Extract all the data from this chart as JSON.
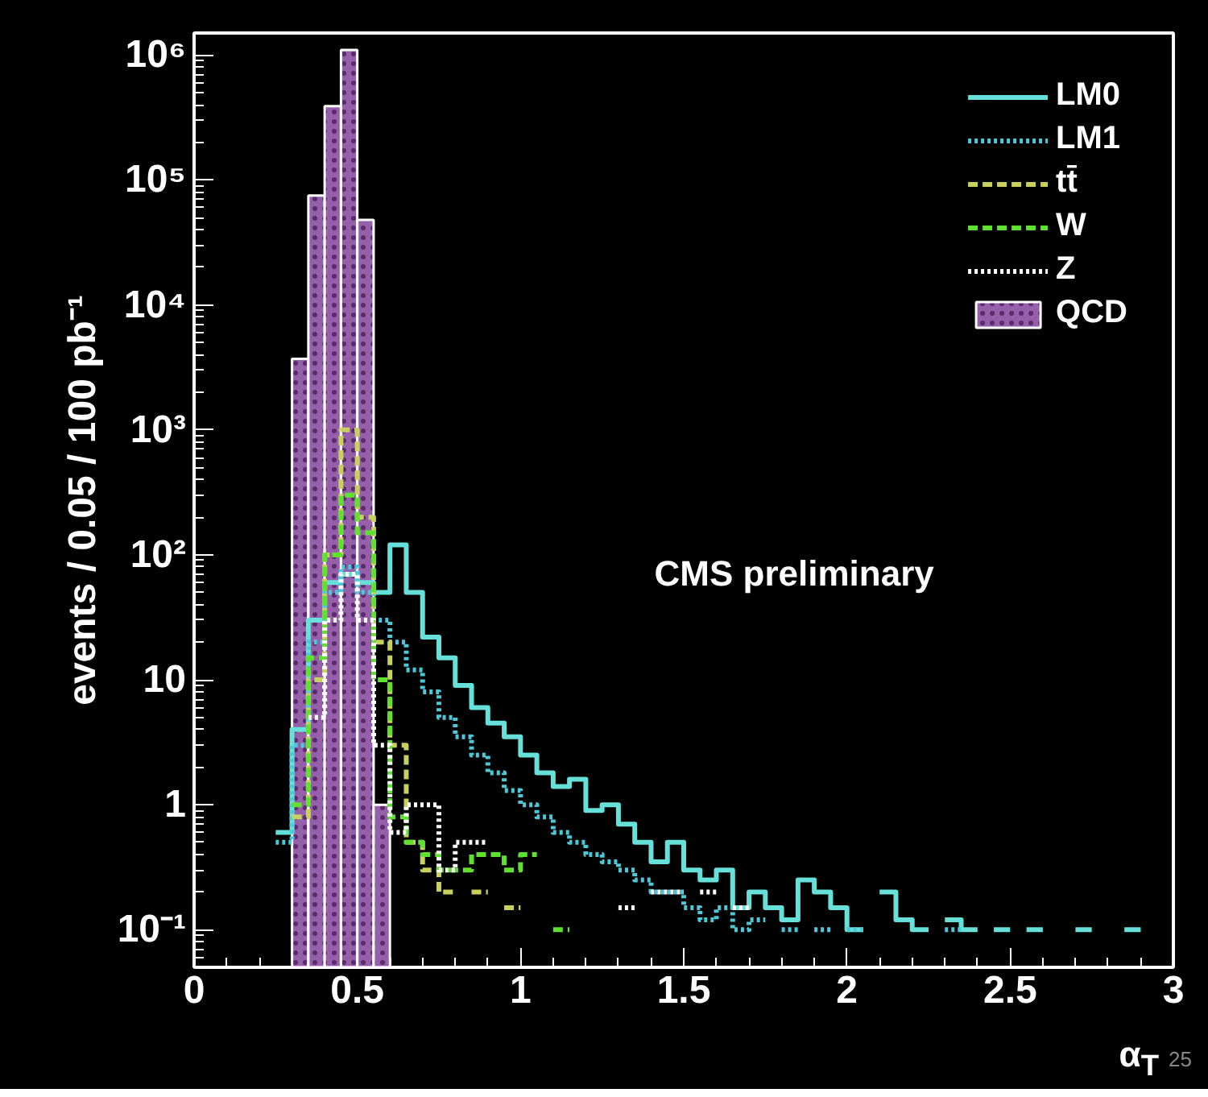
{
  "chart_data": {
    "type": "histogram",
    "xlabel": "α$_{T}$",
    "ylabel": "events / 0.05 / 100 pb⁻¹",
    "annotations": [
      "CMS preliminary",
      "25"
    ],
    "log": "y",
    "legend": "top right",
    "grid": false,
    "xlim": [
      0,
      3
    ],
    "ylim": [
      0.05,
      1500000
    ],
    "xticks": [
      0,
      0.5,
      1,
      1.5,
      2,
      2.5,
      3
    ],
    "yticks": [
      {
        "value": 0.1,
        "label": "10⁻¹"
      },
      1,
      10,
      {
        "value": 100,
        "label": "10²"
      },
      {
        "value": 1000,
        "label": "10³"
      },
      {
        "value": 10000,
        "label": "10⁴"
      },
      {
        "value": 100000,
        "label": "10⁵"
      },
      {
        "value": 1000000,
        "label": "10⁶"
      }
    ],
    "bins": [
      0,
      0.05,
      0.1,
      0.15,
      0.2,
      0.25,
      0.3,
      0.35,
      0.4,
      0.45,
      0.5,
      0.55,
      0.6,
      0.65,
      0.7,
      0.75,
      0.8,
      0.85,
      0.9,
      0.95,
      1,
      1.05,
      1.1,
      1.15,
      1.2,
      1.25,
      1.3,
      1.35,
      1.4,
      1.45,
      1.5,
      1.55,
      1.6,
      1.65,
      1.7,
      1.75,
      1.8,
      1.85,
      1.9,
      1.95,
      2,
      2.05,
      2.1,
      2.15,
      2.2,
      2.25,
      2.3,
      2.35,
      2.4,
      2.45,
      2.5,
      2.55,
      2.6,
      2.65,
      2.7,
      2.75,
      2.8,
      2.85,
      2.9,
      2.95,
      3
    ],
    "series": [
      {
        "name": "LM0",
        "type": "step",
        "x": [
          0.25,
          0.3,
          0.35,
          0.4,
          0.45,
          0.5,
          0.55,
          0.6,
          0.65,
          0.7,
          0.75,
          0.8,
          0.85,
          0.9,
          0.95,
          1,
          1.05,
          1.1,
          1.15,
          1.2,
          1.25,
          1.3,
          1.35,
          1.4,
          1.45,
          1.5,
          1.55,
          1.6,
          1.65,
          1.7,
          1.75,
          1.8,
          1.85,
          1.9,
          1.95,
          2,
          2.05,
          2.1,
          2.15,
          2.2,
          2.25,
          2.3,
          2.35,
          2.4,
          2.45,
          2.5,
          2.55,
          2.6,
          2.65,
          2.7,
          2.75,
          2.8,
          2.85,
          2.9
        ],
        "line_style": "solid",
        "color": "#66e0d8",
        "values": [
          0.6,
          4,
          30,
          60,
          70,
          60,
          50,
          120,
          50,
          22,
          15,
          9,
          6,
          4.5,
          3.5,
          2.5,
          1.8,
          1.4,
          1.6,
          0.9,
          1,
          0.7,
          0.5,
          0.35,
          0.5,
          0.3,
          0.25,
          0.3,
          0.15,
          0.2,
          0.15,
          0.12,
          0.25,
          0.2,
          0.15,
          0.1,
          null,
          0.2,
          0.12,
          0.1,
          null,
          0.12,
          0.1,
          null,
          0.1,
          null,
          0.1,
          null,
          null,
          0.1,
          null,
          null,
          0.1,
          0.1
        ]
      },
      {
        "name": "LM1",
        "type": "step",
        "x": [
          0.25,
          0.3,
          0.35,
          0.4,
          0.45,
          0.5,
          0.55,
          0.6,
          0.65,
          0.7,
          0.75,
          0.8,
          0.85,
          0.9,
          0.95,
          1,
          1.05,
          1.1,
          1.15,
          1.2,
          1.25,
          1.3,
          1.35,
          1.4,
          1.45,
          1.5,
          1.55,
          1.6,
          1.65,
          1.7,
          1.75,
          1.8,
          1.85,
          1.9,
          1.95,
          2,
          2.05,
          2.1,
          2.15,
          2.2,
          2.25,
          2.3,
          2.35
        ],
        "line_style": "dotted",
        "color": "#4cc8d8",
        "values": [
          0.5,
          3,
          20,
          50,
          80,
          50,
          30,
          20,
          12,
          8,
          5,
          3.5,
          2.5,
          1.8,
          1.3,
          1,
          0.8,
          0.6,
          0.5,
          0.4,
          0.35,
          0.3,
          0.25,
          0.2,
          0.2,
          0.15,
          0.12,
          0.15,
          0.1,
          0.12,
          null,
          0.1,
          null,
          0.1,
          null,
          0.1,
          null,
          null,
          null,
          null,
          null,
          0.1,
          0.1
        ]
      },
      {
        "name": "tt̄",
        "type": "step",
        "x": [
          0.3,
          0.35,
          0.4,
          0.45,
          0.5,
          0.55,
          0.6,
          0.65,
          0.7,
          0.75,
          0.8,
          0.85,
          0.9,
          0.95,
          1
        ],
        "line_style": "dashed",
        "color": "#c8d060",
        "values": [
          0.8,
          10,
          100,
          1000,
          200,
          20,
          3,
          0.5,
          0.3,
          0.2,
          null,
          0.2,
          null,
          0.15,
          0.15
        ]
      },
      {
        "name": "W",
        "type": "step",
        "x": [
          0.3,
          0.35,
          0.4,
          0.45,
          0.5,
          0.55,
          0.6,
          0.65,
          0.7,
          0.75,
          0.8,
          0.85,
          0.9,
          0.95,
          1,
          1.05,
          1.1,
          1.15
        ],
        "line_style": "dashed",
        "color": "#60e030",
        "values": [
          1,
          15,
          100,
          300,
          150,
          10,
          0.8,
          0.5,
          0.4,
          0.3,
          0.3,
          0.4,
          0.4,
          0.3,
          0.4,
          null,
          0.1,
          0.1
        ]
      },
      {
        "name": "Z",
        "type": "step",
        "x": [
          0.35,
          0.4,
          0.45,
          0.5,
          0.55,
          0.6,
          0.65,
          0.7,
          0.75,
          0.8,
          0.85,
          0.9,
          0.95,
          1,
          1.05,
          1.1,
          1.15,
          1.2,
          1.25,
          1.3,
          1.35,
          1.4,
          1.45,
          1.5,
          1.55,
          1.6,
          1.65,
          1.7
        ],
        "line_style": "dotted",
        "color": "#ffffff",
        "values": [
          5,
          30,
          70,
          30,
          3,
          0.6,
          1,
          1,
          0.3,
          0.5,
          0.5,
          null,
          null,
          null,
          null,
          null,
          null,
          null,
          null,
          0.15,
          null,
          0.2,
          0.2,
          null,
          0.2,
          null,
          0.15,
          0.15
        ]
      },
      {
        "name": "QCD",
        "color": "#b070c8",
        "values": [
          null,
          null,
          null,
          null,
          null,
          null,
          3700,
          75000,
          390000,
          1100000,
          48000,
          1,
          null,
          null,
          null,
          null,
          null,
          null,
          null,
          null,
          null,
          null,
          null,
          null,
          null,
          null,
          null,
          null,
          null,
          null,
          null,
          null,
          null,
          null,
          null,
          null,
          null,
          null,
          null,
          null,
          null,
          null,
          null,
          null,
          null,
          null,
          null,
          null,
          null,
          null,
          null,
          null,
          null,
          null,
          null,
          null,
          null,
          null,
          null,
          null
        ]
      }
    ]
  }
}
